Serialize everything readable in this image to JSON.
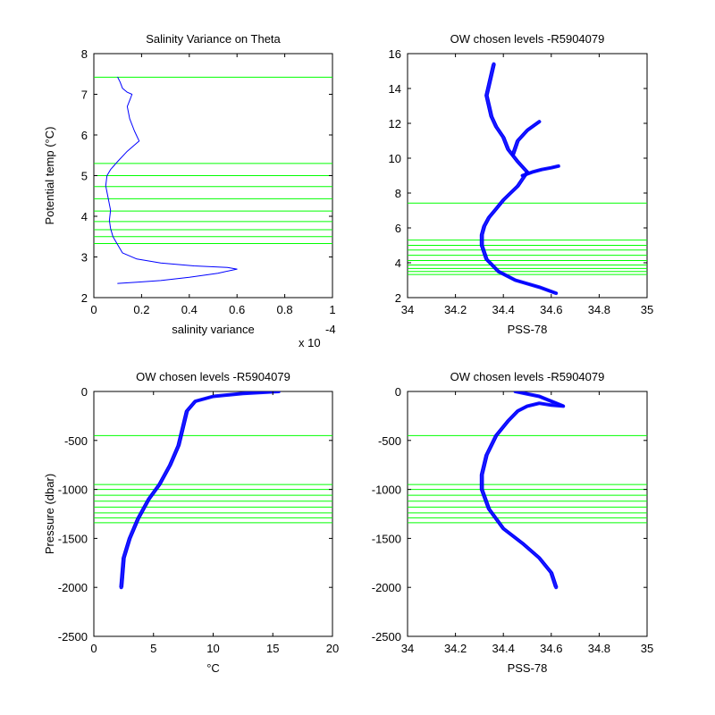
{
  "chart_data": [
    {
      "type": "line",
      "title": "Salinity Variance on Theta",
      "xlabel": "salinity variance",
      "ylabel": "Potential temp (°C)",
      "x_exponent_label": "x 10",
      "x_exponent_power": "-4",
      "xlim": [
        0,
        1
      ],
      "ylim": [
        2,
        8
      ],
      "xticks": [
        "0",
        "0.2",
        "0.4",
        "0.6",
        "0.8",
        "1"
      ],
      "yticks": [
        "2",
        "3",
        "4",
        "5",
        "6",
        "7",
        "8"
      ],
      "grid": false,
      "series": [
        {
          "color": "#0000ff",
          "x": [
            0.1,
            0.18,
            0.28,
            0.4,
            0.52,
            0.6,
            0.56,
            0.42,
            0.28,
            0.18,
            0.12,
            0.1,
            0.08,
            0.07,
            0.065,
            0.07,
            0.06,
            0.05,
            0.055,
            0.07,
            0.1,
            0.14,
            0.19,
            0.17,
            0.15,
            0.14,
            0.15,
            0.16,
            0.14,
            0.12,
            0.11,
            0.1
          ],
          "y": [
            2.35,
            2.38,
            2.42,
            2.5,
            2.6,
            2.7,
            2.74,
            2.78,
            2.85,
            2.95,
            3.1,
            3.3,
            3.5,
            3.7,
            3.9,
            4.15,
            4.45,
            4.75,
            5.0,
            5.15,
            5.35,
            5.6,
            5.85,
            6.1,
            6.4,
            6.7,
            6.85,
            7.0,
            7.05,
            7.15,
            7.3,
            7.42
          ]
        }
      ],
      "chosen_levels": [
        3.33,
        3.5,
        3.67,
        3.87,
        4.13,
        4.43,
        4.73,
        5.0,
        5.3,
        7.42
      ],
      "level_color": "#00ff00"
    },
    {
      "type": "line",
      "title": "OW chosen levels -R5904079",
      "xlabel": "PSS-78",
      "ylabel": "",
      "xlim": [
        34,
        35
      ],
      "ylim": [
        2,
        16
      ],
      "xticks": [
        "34",
        "34.2",
        "34.4",
        "34.6",
        "34.8",
        "35"
      ],
      "yticks": [
        "2",
        "4",
        "6",
        "8",
        "10",
        "12",
        "14",
        "16"
      ],
      "grid": false,
      "series": [
        {
          "color": "#0000ff",
          "x": [
            34.62,
            34.55,
            34.45,
            34.38,
            34.33,
            34.31,
            34.31,
            34.32,
            34.34,
            34.37,
            34.4,
            34.43,
            34.46,
            34.48,
            34.5
          ],
          "y": [
            2.25,
            2.6,
            3.0,
            3.5,
            4.2,
            5.0,
            5.6,
            6.1,
            6.6,
            7.1,
            7.6,
            8.0,
            8.4,
            8.8,
            9.2
          ]
        },
        {
          "color": "#0000ff",
          "x": [
            34.5,
            34.46,
            34.42,
            34.4,
            34.37,
            34.35,
            34.34,
            34.33,
            34.34,
            34.35,
            34.36
          ],
          "y": [
            9.2,
            9.8,
            10.5,
            11.2,
            11.8,
            12.4,
            13.0,
            13.6,
            14.2,
            14.8,
            15.4
          ]
        },
        {
          "color": "#0000ff",
          "x": [
            34.48,
            34.52,
            34.56,
            34.6,
            34.63
          ],
          "y": [
            9.0,
            9.2,
            9.35,
            9.45,
            9.55
          ]
        },
        {
          "color": "#0000ff",
          "x": [
            34.44,
            34.46,
            34.5,
            34.55
          ],
          "y": [
            10.2,
            11.0,
            11.6,
            12.1
          ]
        }
      ],
      "chosen_levels": [
        3.33,
        3.5,
        3.67,
        3.87,
        4.13,
        4.43,
        4.73,
        5.0,
        5.3,
        7.42
      ],
      "level_color": "#00ff00"
    },
    {
      "type": "line",
      "title": "OW chosen levels -R5904079",
      "xlabel": "°C",
      "ylabel": "Pressure (dbar)",
      "xlim": [
        0,
        20
      ],
      "ylim": [
        -2500,
        0
      ],
      "xticks": [
        "0",
        "5",
        "10",
        "15",
        "20"
      ],
      "yticks": [
        "-2500",
        "-2000",
        "-1500",
        "-1000",
        "-500",
        "0"
      ],
      "grid": false,
      "series": [
        {
          "color": "#0000ff",
          "x": [
            2.3,
            2.5,
            3.0,
            3.7,
            4.6,
            5.5,
            6.4,
            7.1,
            7.5,
            7.8,
            8.5,
            10.0,
            12.5,
            15.5
          ],
          "y": [
            -2000,
            -1700,
            -1500,
            -1300,
            -1100,
            -950,
            -750,
            -550,
            -350,
            -200,
            -100,
            -50,
            -20,
            0
          ]
        }
      ],
      "chosen_levels": [
        -450,
        -950,
        -1000,
        -1060,
        -1120,
        -1180,
        -1240,
        -1290,
        -1340
      ],
      "level_color": "#00ff00"
    },
    {
      "type": "line",
      "title": "OW chosen levels -R5904079",
      "xlabel": "PSS-78",
      "ylabel": "",
      "xlim": [
        34,
        35
      ],
      "ylim": [
        -2500,
        0
      ],
      "xticks": [
        "34",
        "34.2",
        "34.4",
        "34.6",
        "34.8",
        "35"
      ],
      "yticks": [
        "-2500",
        "-2000",
        "-1500",
        "-1000",
        "-500",
        "0"
      ],
      "grid": false,
      "series": [
        {
          "color": "#0000ff",
          "x": [
            34.62,
            34.6,
            34.55,
            34.48,
            34.4,
            34.34,
            34.31,
            34.31,
            34.33,
            34.37,
            34.42,
            34.46,
            34.5,
            34.55,
            34.6,
            34.65,
            34.55,
            34.45
          ],
          "y": [
            -2000,
            -1850,
            -1700,
            -1550,
            -1400,
            -1200,
            -1000,
            -850,
            -650,
            -450,
            -300,
            -200,
            -150,
            -120,
            -140,
            -150,
            -50,
            0
          ]
        }
      ],
      "chosen_levels": [
        -450,
        -950,
        -1000,
        -1060,
        -1120,
        -1180,
        -1240,
        -1290,
        -1340
      ],
      "level_color": "#00ff00"
    }
  ]
}
